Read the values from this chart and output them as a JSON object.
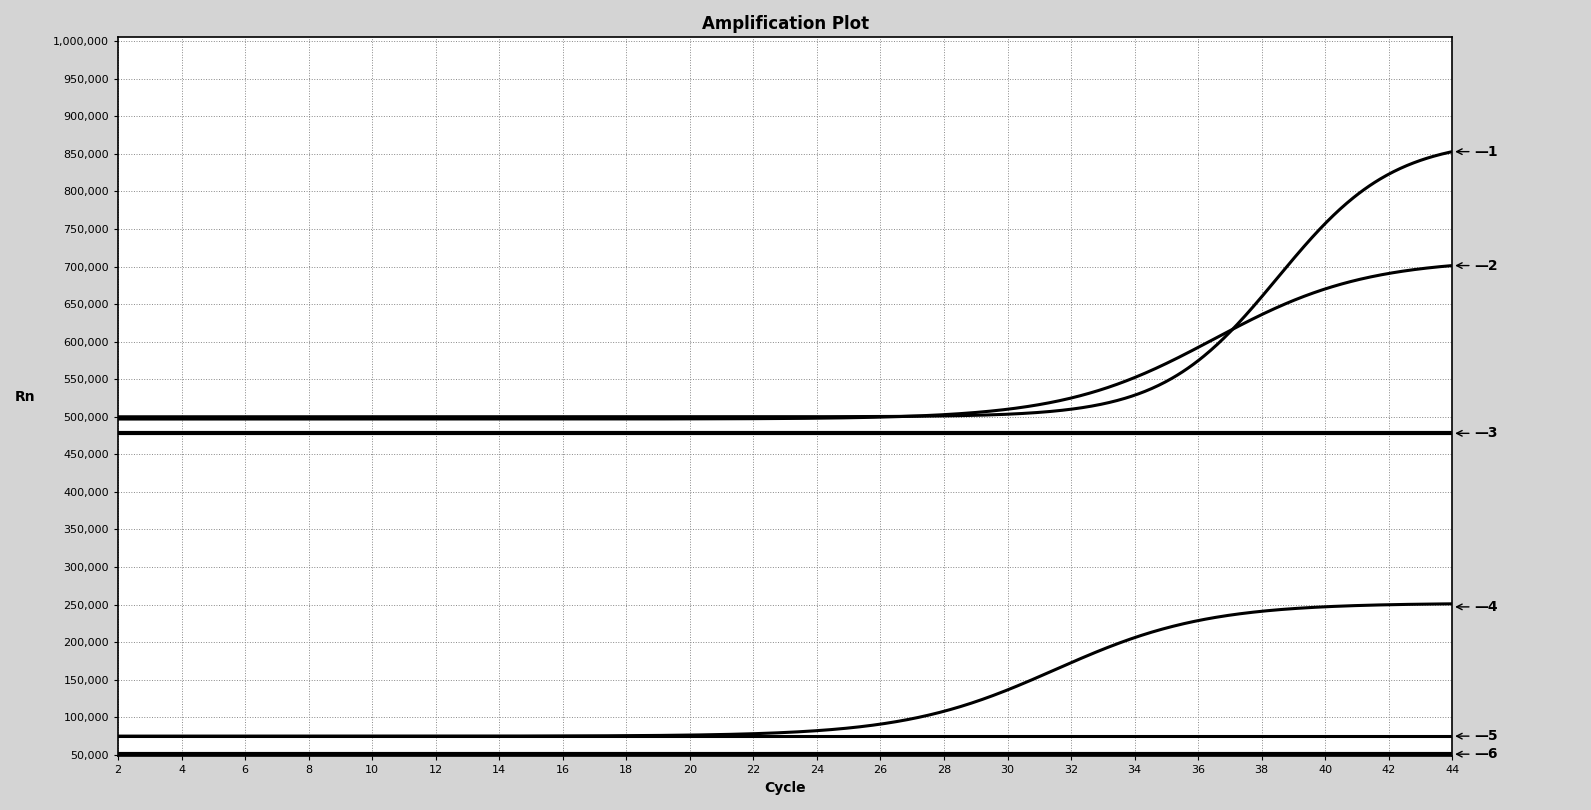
{
  "title": "Amplification Plot",
  "xlabel": "Cycle",
  "ylabel": "Rn",
  "xlim": [
    2,
    44
  ],
  "ylim": [
    50000,
    1000000
  ],
  "ytick_values": [
    50000,
    100000,
    150000,
    200000,
    250000,
    300000,
    350000,
    400000,
    450000,
    500000,
    550000,
    600000,
    650000,
    700000,
    750000,
    800000,
    850000,
    900000,
    950000,
    1000000
  ],
  "xtick_values": [
    2,
    4,
    6,
    8,
    10,
    12,
    14,
    16,
    18,
    20,
    22,
    24,
    26,
    28,
    30,
    32,
    34,
    36,
    38,
    40,
    42,
    44
  ],
  "curve1": {
    "plateau": 870000,
    "midpoint": 38.5,
    "steepness": 0.55,
    "baseline": 500000
  },
  "curve2": {
    "plateau": 710000,
    "midpoint": 36.5,
    "steepness": 0.42,
    "baseline": 497000
  },
  "curve3_level": 478000,
  "curve4": {
    "plateau": 252000,
    "midpoint": 31.5,
    "steepness": 0.42,
    "baseline": 75000
  },
  "curve5_level": 75000,
  "curve6_level": 51000,
  "line_color": "#000000",
  "bg_color": "#ffffff",
  "fig_bg_color": "#d4d4d4",
  "grid_color": "#888888",
  "label_fontsize": 8,
  "title_fontsize": 12,
  "axis_label_fontsize": 10,
  "curve_labels": [
    "1",
    "2",
    "3",
    "4",
    "5",
    "6"
  ]
}
